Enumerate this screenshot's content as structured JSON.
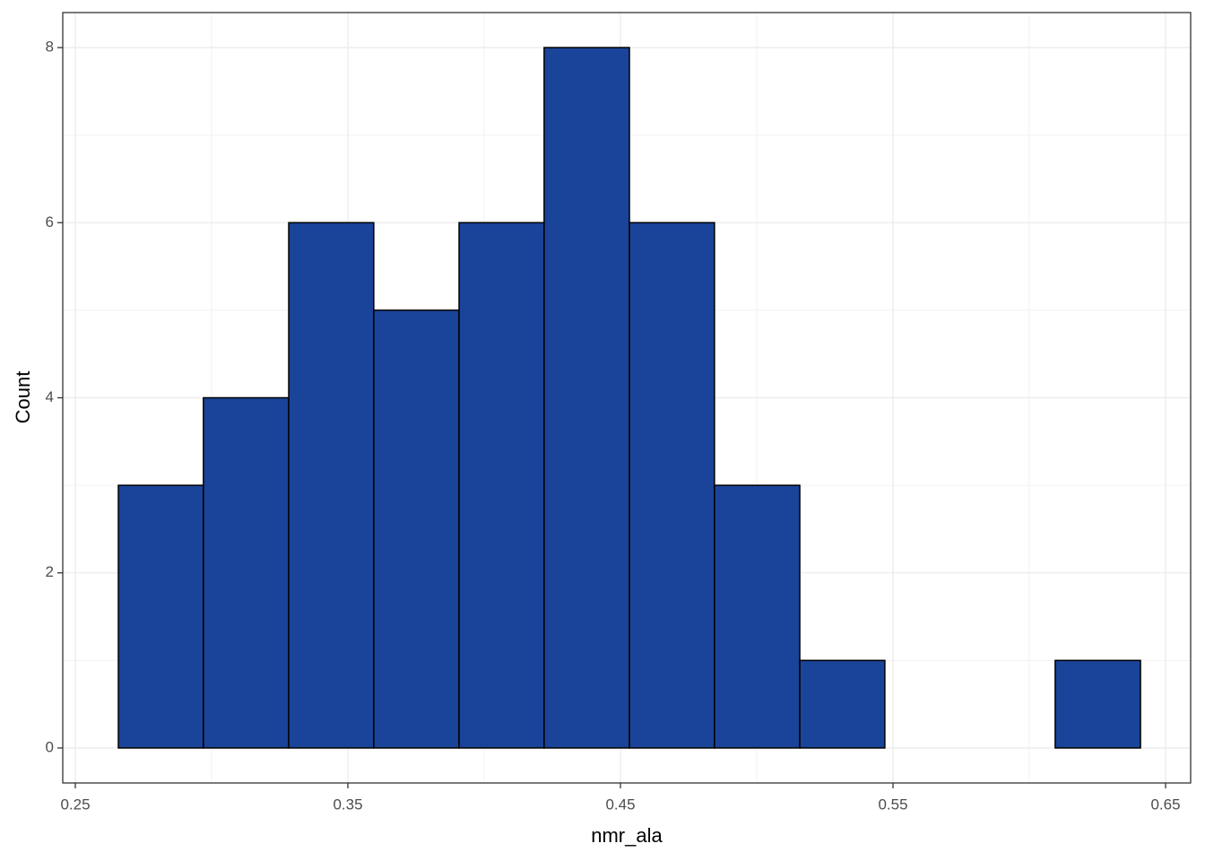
{
  "chart_data": {
    "type": "histogram",
    "x_label": "nmr_ala",
    "y_label": "Count",
    "bins": [
      0.2658,
      0.297,
      0.3283,
      0.3595,
      0.3908,
      0.422,
      0.4533,
      0.4845,
      0.5158,
      0.547,
      0.5783,
      0.6095,
      0.6408
    ],
    "counts": [
      3,
      4,
      6,
      5,
      6,
      8,
      6,
      3,
      1,
      0,
      0,
      1
    ],
    "color": "#1a4499",
    "edge_color": "#000000",
    "xlim": [
      0.2454,
      0.6592
    ],
    "ylim": [
      -0.4,
      8.4
    ],
    "xticks": [
      0.25,
      0.35,
      0.45,
      0.55,
      0.65
    ],
    "yticks": [
      0,
      2,
      4,
      6,
      8
    ],
    "grid": true
  }
}
